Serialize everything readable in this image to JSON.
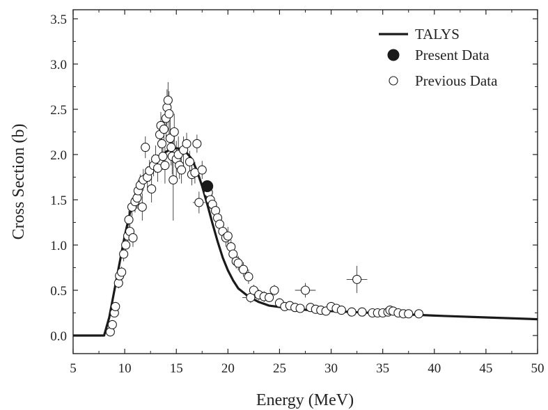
{
  "chart_data": {
    "type": "scatter",
    "xlabel": "Energy (MeV)",
    "ylabel": "Cross Section (b)",
    "xlim": [
      5,
      50
    ],
    "ylim": [
      -0.2,
      3.6
    ],
    "x_ticks": [
      "5",
      "10",
      "15",
      "20",
      "25",
      "30",
      "35",
      "40",
      "45",
      "50"
    ],
    "y_ticks": [
      "0.0",
      "0.5",
      "1.0",
      "1.5",
      "2.0",
      "2.5",
      "3.0",
      "3.5"
    ],
    "grid": false,
    "legend_position": "top-right",
    "legend": [
      "TALYS",
      "Present Data",
      "Previous Data"
    ],
    "series": [
      {
        "name": "TALYS",
        "style": "line",
        "color": "#1a1a1a",
        "points": [
          [
            5,
            0
          ],
          [
            8,
            0
          ],
          [
            8.5,
            0.2
          ],
          [
            9,
            0.5
          ],
          [
            9.5,
            0.8
          ],
          [
            10,
            1.1
          ],
          [
            10.5,
            1.35
          ],
          [
            11,
            1.55
          ],
          [
            11.5,
            1.68
          ],
          [
            12,
            1.78
          ],
          [
            12.5,
            1.86
          ],
          [
            13,
            1.92
          ],
          [
            13.5,
            1.98
          ],
          [
            14,
            2.03
          ],
          [
            14.5,
            2.06
          ],
          [
            15,
            2.07
          ],
          [
            15.5,
            2.06
          ],
          [
            16,
            2.02
          ],
          [
            16.5,
            1.95
          ],
          [
            17,
            1.82
          ],
          [
            17.5,
            1.65
          ],
          [
            18,
            1.45
          ],
          [
            18.5,
            1.24
          ],
          [
            19,
            1.04
          ],
          [
            19.5,
            0.86
          ],
          [
            20,
            0.72
          ],
          [
            20.5,
            0.61
          ],
          [
            21,
            0.52
          ],
          [
            22,
            0.43
          ],
          [
            23,
            0.37
          ],
          [
            24,
            0.33
          ],
          [
            26,
            0.3
          ],
          [
            28,
            0.28
          ],
          [
            30,
            0.27
          ],
          [
            35,
            0.245
          ],
          [
            40,
            0.22
          ],
          [
            45,
            0.2
          ],
          [
            50,
            0.18
          ]
        ]
      },
      {
        "name": "Present Data",
        "style": "filled-circle",
        "color": "#1a1a1a",
        "points": [
          [
            18,
            1.65
          ]
        ]
      },
      {
        "name": "Previous Data",
        "style": "open-circle",
        "color": "#1a1a1a",
        "points": [
          [
            8.6,
            0.04,
            0,
            0.05
          ],
          [
            8.8,
            0.12,
            0,
            0.05
          ],
          [
            9,
            0.25,
            0,
            0.05
          ],
          [
            9.1,
            0.32,
            0,
            0.05
          ],
          [
            9.4,
            0.58,
            0,
            0.06
          ],
          [
            9.5,
            0.66,
            0,
            0.06
          ],
          [
            9.7,
            0.7,
            0,
            0.06
          ],
          [
            9.9,
            0.9,
            0,
            0.08
          ],
          [
            10.1,
            1.0,
            0,
            0.08
          ],
          [
            10.3,
            1.1,
            0,
            0.1
          ],
          [
            10.4,
            1.28,
            0,
            0.1
          ],
          [
            10.5,
            1.15,
            0,
            0.1
          ],
          [
            10.7,
            1.42,
            0,
            0.1
          ],
          [
            10.8,
            1.08,
            0,
            0.1
          ],
          [
            11,
            1.48,
            0,
            0.12
          ],
          [
            11.2,
            1.52,
            0,
            0.12
          ],
          [
            11.3,
            1.6,
            0,
            0.12
          ],
          [
            11.5,
            1.66,
            0,
            0.12
          ],
          [
            11.7,
            1.42,
            0,
            0.15
          ],
          [
            11.8,
            1.72,
            0,
            0.12
          ],
          [
            12,
            2.08,
            0,
            0.12
          ],
          [
            12.2,
            1.75,
            0,
            0.12
          ],
          [
            12.4,
            1.82,
            0,
            0.12
          ],
          [
            12.6,
            1.62,
            0,
            0.15
          ],
          [
            12.8,
            1.88,
            0,
            0.12
          ],
          [
            13,
            1.95,
            0,
            0.15
          ],
          [
            13.2,
            1.85,
            0,
            0.15
          ],
          [
            13.4,
            2.22,
            0,
            0.15
          ],
          [
            13.5,
            2.32,
            0,
            0.15
          ],
          [
            13.6,
            2.12,
            0,
            0.15
          ],
          [
            13.7,
            1.98,
            0,
            0.15
          ],
          [
            13.8,
            2.28,
            0,
            0.15
          ],
          [
            13.9,
            1.88,
            0,
            0.2
          ],
          [
            14,
            2.4,
            0,
            0.2
          ],
          [
            14.1,
            2.52,
            0,
            0.2
          ],
          [
            14.2,
            2.6,
            0,
            0.2
          ],
          [
            14.3,
            2.45,
            0,
            0.25
          ],
          [
            14.4,
            2.18,
            0,
            0.2
          ],
          [
            14.5,
            2.08,
            0,
            0.2
          ],
          [
            14.6,
            1.98,
            0,
            0.2
          ],
          [
            14.7,
            1.72,
            0,
            0.45
          ],
          [
            14.8,
            2.25,
            0,
            0.2
          ],
          [
            15,
            1.95,
            0,
            0.2
          ],
          [
            15.2,
            2.0,
            0,
            0.2
          ],
          [
            15.3,
            1.88,
            0,
            0.15
          ],
          [
            15.5,
            1.83,
            0,
            0.15
          ],
          [
            15.7,
            2.05,
            0,
            0.15
          ],
          [
            16,
            2.12,
            0,
            0.12
          ],
          [
            16.3,
            1.92,
            0,
            0.12
          ],
          [
            16.5,
            1.78,
            0,
            0.12
          ],
          [
            16.8,
            1.8,
            0,
            0.12
          ],
          [
            17,
            2.12,
            0,
            0.1
          ],
          [
            17.2,
            1.47,
            0.6,
            0.12
          ],
          [
            17.5,
            1.83,
            0,
            0.1
          ],
          [
            18.1,
            1.58,
            0,
            0.1
          ],
          [
            18.3,
            1.5,
            0,
            0.1
          ],
          [
            18.5,
            1.45,
            0,
            0.1
          ],
          [
            18.8,
            1.38,
            0,
            0.1
          ],
          [
            19,
            1.3,
            0,
            0.1
          ],
          [
            19.2,
            1.23,
            0,
            0.1
          ],
          [
            19.5,
            1.15,
            0,
            0.1
          ],
          [
            19.8,
            1.08,
            0,
            0.1
          ],
          [
            20,
            1.1,
            0,
            0.1
          ],
          [
            20.3,
            0.98,
            0,
            0.08
          ],
          [
            20.5,
            0.9,
            0,
            0.08
          ],
          [
            20.8,
            0.82,
            0,
            0.08
          ],
          [
            21,
            0.8,
            0,
            0.08
          ],
          [
            21.5,
            0.73,
            0,
            0.08
          ],
          [
            22,
            0.65,
            0,
            0.08
          ],
          [
            22.2,
            0.42,
            0.8,
            0.06
          ],
          [
            22.5,
            0.5,
            0,
            0.06
          ],
          [
            23,
            0.45,
            0,
            0.06
          ],
          [
            23.5,
            0.43,
            0,
            0.06
          ],
          [
            24,
            0.42,
            0,
            0.05
          ],
          [
            24.5,
            0.5,
            0,
            0.06
          ],
          [
            25,
            0.36,
            0,
            0.05
          ],
          [
            25.5,
            0.32,
            0,
            0.04
          ],
          [
            26,
            0.33,
            0,
            0.04
          ],
          [
            26.5,
            0.31,
            0,
            0.04
          ],
          [
            27,
            0.3,
            0,
            0.04
          ],
          [
            27.5,
            0.5,
            1,
            0.08
          ],
          [
            28,
            0.31,
            0,
            0.04
          ],
          [
            28.5,
            0.29,
            0,
            0.04
          ],
          [
            29,
            0.28,
            0,
            0.04
          ],
          [
            29.5,
            0.27,
            0,
            0.04
          ],
          [
            30,
            0.32,
            0,
            0.04
          ],
          [
            30.5,
            0.3,
            0,
            0.04
          ],
          [
            31,
            0.28,
            0,
            0.04
          ],
          [
            32,
            0.26,
            0,
            0.04
          ],
          [
            32.5,
            0.62,
            1,
            0.15
          ],
          [
            33,
            0.26,
            0,
            0.04
          ],
          [
            34,
            0.25,
            0,
            0.04
          ],
          [
            34.5,
            0.25,
            0,
            0.04
          ],
          [
            35,
            0.25,
            0,
            0.04
          ],
          [
            35.5,
            0.26,
            0,
            0.04
          ],
          [
            35.7,
            0.28,
            0,
            0.04
          ],
          [
            36,
            0.27,
            0,
            0.04
          ],
          [
            36.5,
            0.25,
            0,
            0.04
          ],
          [
            37,
            0.24,
            0,
            0.03
          ],
          [
            37.5,
            0.24,
            0,
            0.03
          ],
          [
            38.5,
            0.24,
            0,
            0.03
          ]
        ]
      }
    ]
  }
}
